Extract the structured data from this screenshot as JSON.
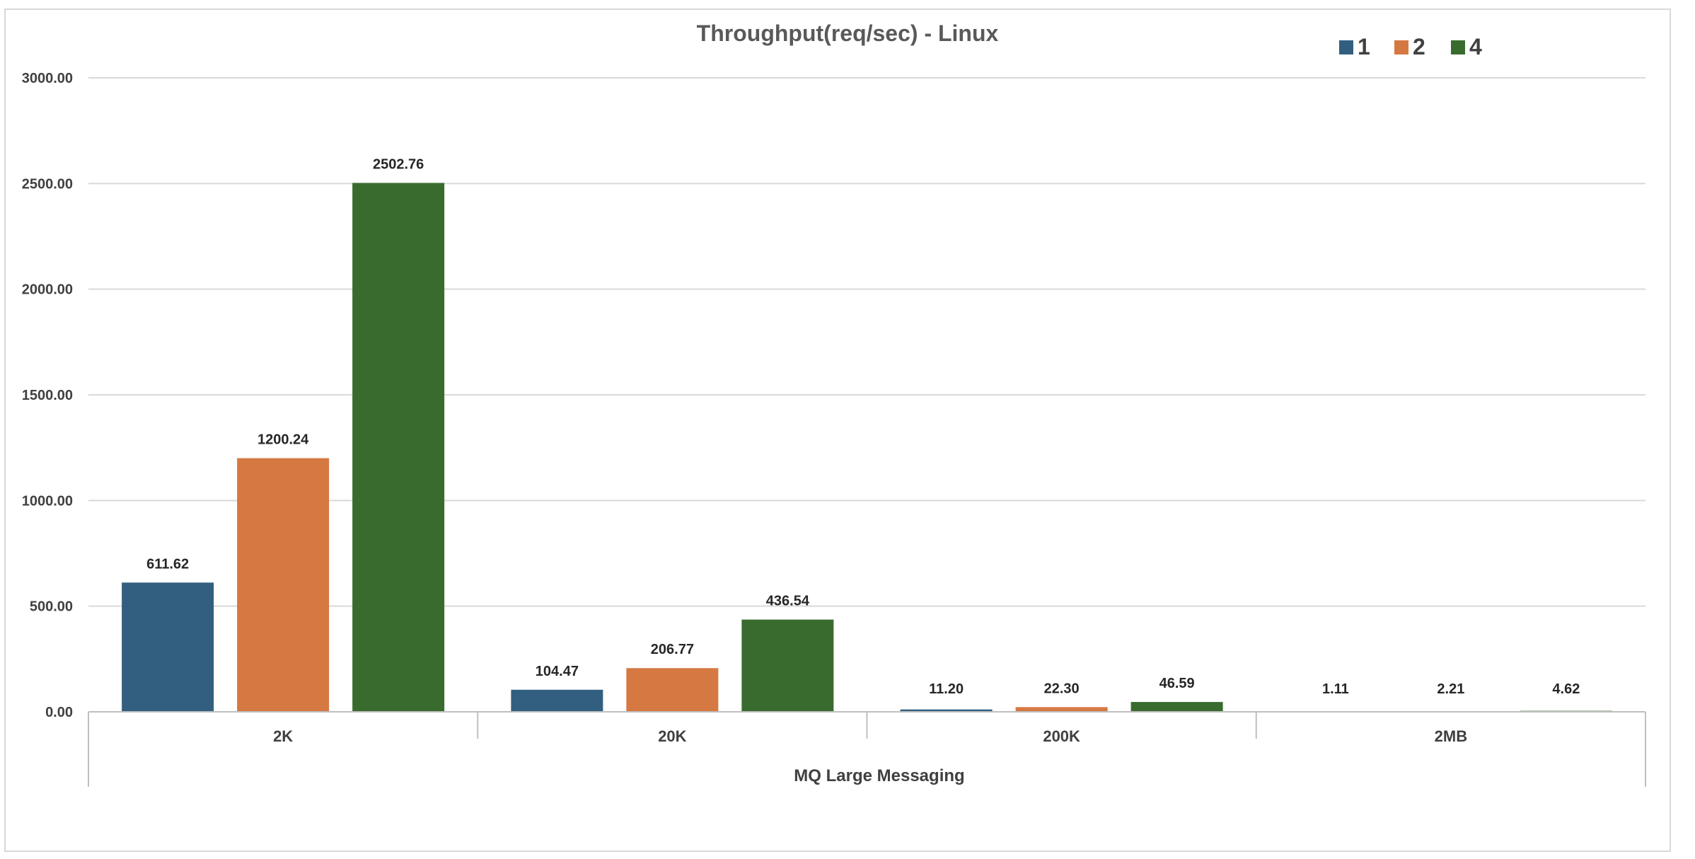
{
  "chart_data": {
    "type": "bar",
    "title": "Throughput(req/sec) - Linux",
    "xlabel": "MQ Large Messaging",
    "ylabel": "",
    "categories": [
      "2K",
      "20K",
      "200K",
      "2MB"
    ],
    "series": [
      {
        "name": "1",
        "color": "#325F80",
        "values": [
          611.62,
          104.47,
          11.2,
          1.11
        ],
        "labels": [
          "611.62",
          "104.47",
          "11.20",
          "1.11"
        ]
      },
      {
        "name": "2",
        "color": "#D57841",
        "values": [
          1200.24,
          206.77,
          22.3,
          2.21
        ],
        "labels": [
          "1200.24",
          "206.77",
          "22.30",
          "2.21"
        ]
      },
      {
        "name": "4",
        "color": "#3A6B2E",
        "values": [
          2502.76,
          436.54,
          46.59,
          4.62
        ],
        "labels": [
          "2502.76",
          "436.54",
          "46.59",
          "4.62"
        ]
      }
    ],
    "ylim": [
      0,
      3000
    ],
    "yticks": [
      "0.00",
      "500.00",
      "1000.00",
      "1500.00",
      "2000.00",
      "2500.00",
      "3000.00"
    ],
    "grid": true,
    "legend_position": "top-right"
  }
}
